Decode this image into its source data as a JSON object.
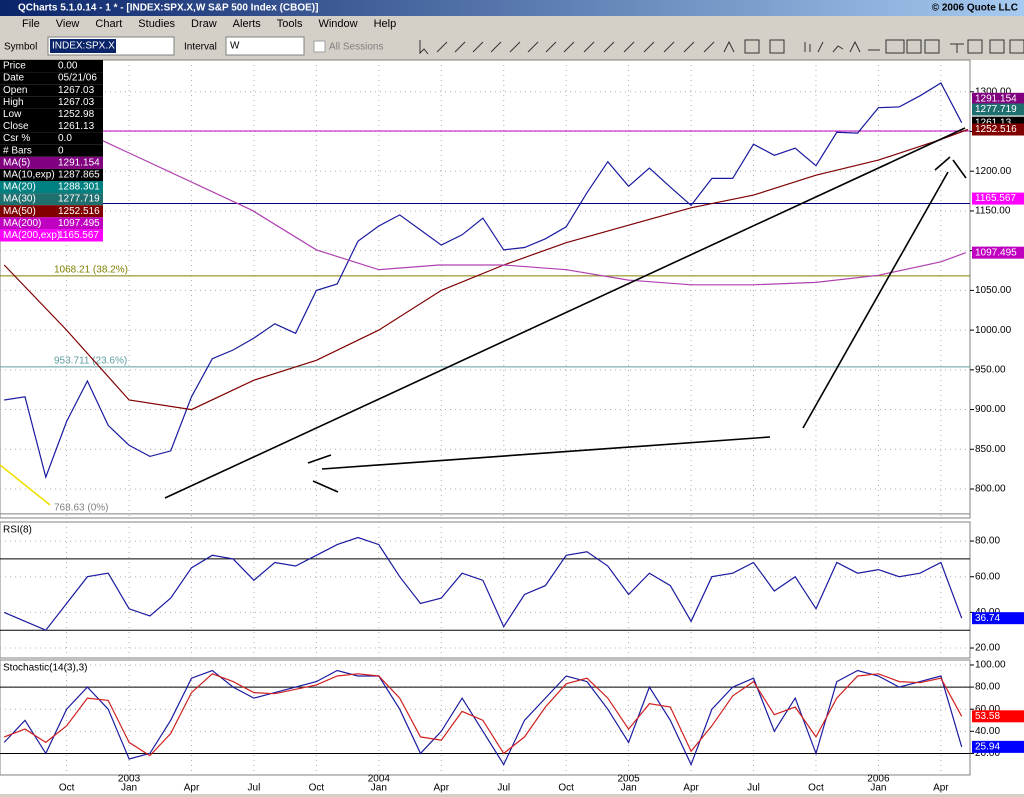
{
  "window": {
    "title": "QCharts 5.1.0.14 - 1 * - [INDEX:SPX.X,W S&P 500 Index (CBOE)]",
    "copyright": "© 2006 Quote LLC"
  },
  "menu": [
    "File",
    "View",
    "Chart",
    "Studies",
    "Draw",
    "Alerts",
    "Tools",
    "Window",
    "Help"
  ],
  "toolbar": {
    "symbol_label": "Symbol",
    "symbol": "INDEX:SPX.X",
    "interval_label": "Interval",
    "interval": "W",
    "sessions": "All Sessions"
  },
  "data_box": [
    {
      "label": "Price",
      "value": "0.00",
      "color": "#000000"
    },
    {
      "label": "Date",
      "value": "05/21/06",
      "color": "#000000"
    },
    {
      "label": "Open",
      "value": "1267.03",
      "color": "#000000"
    },
    {
      "label": "High",
      "value": "1267.03",
      "color": "#000000"
    },
    {
      "label": "Low",
      "value": "1252.98",
      "color": "#000000"
    },
    {
      "label": "Close",
      "value": "1261.13",
      "color": "#000000"
    },
    {
      "label": "Csr %",
      "value": "0.0",
      "color": "#000000"
    },
    {
      "label": "# Bars",
      "value": "0",
      "color": "#000000"
    },
    {
      "label": "MA(5)",
      "value": "1291.154",
      "color": "#800080"
    },
    {
      "label": "MA(10,exp)",
      "value": "1287.865",
      "color": "#000000"
    },
    {
      "label": "MA(20)",
      "value": "1288.301",
      "color": "#008080"
    },
    {
      "label": "MA(30)",
      "value": "1277.719",
      "color": "#1f6f6f"
    },
    {
      "label": "MA(50)",
      "value": "1252.516",
      "color": "#800000"
    },
    {
      "label": "MA(200)",
      "value": "1097.495",
      "color": "#c000c0"
    },
    {
      "label": "MA(200,exp)",
      "value": "1165.567",
      "color": "#ff00ff"
    }
  ],
  "chart_data": [
    {
      "type": "line",
      "xlim": [
        -3.2,
        43.4
      ],
      "ylim": [
        763.5,
        1340
      ],
      "yticks": [
        {
          "value": 800,
          "label": "800.00"
        },
        {
          "value": 850,
          "label": "850.00"
        },
        {
          "value": 900,
          "label": "900.00"
        },
        {
          "value": 950,
          "label": "950.00"
        },
        {
          "value": 1000,
          "label": "1000.00"
        },
        {
          "value": 1050,
          "label": "1050.00"
        },
        {
          "value": 1100,
          "label": "1100.00"
        },
        {
          "value": 1150,
          "label": "1150.00"
        },
        {
          "value": 1200,
          "label": "1200.00"
        },
        {
          "value": 1250,
          "label": "1250.00"
        },
        {
          "value": 1300,
          "label": "1300.00"
        }
      ],
      "levels": [
        {
          "value": 768.63,
          "label": "768.63 (0%)",
          "color": "#808080"
        },
        {
          "value": 953.711,
          "label": "953.711 (23.6%)",
          "color": "#5f9ea0"
        },
        {
          "value": 1068.21,
          "label": "1068.21 (38.2%)",
          "color": "#808000"
        },
        {
          "value": 1159.4,
          "color": "#000080"
        },
        {
          "value": 1250.7,
          "color": "#c000c0"
        }
      ],
      "series": [
        {
          "name": "Close",
          "color": "#1a1aa0",
          "x": [
            -3,
            -2,
            -1,
            0,
            1,
            2,
            3,
            4,
            5,
            6,
            7,
            8,
            9,
            10,
            11,
            12,
            13,
            14,
            15,
            16,
            17,
            18,
            19,
            20,
            21,
            22,
            23,
            24,
            25,
            26,
            27,
            28,
            29,
            30,
            31,
            32,
            33,
            34,
            35,
            36,
            37,
            38,
            39,
            40,
            41,
            42,
            43
          ],
          "values": [
            912,
            916,
            815,
            885,
            936,
            880,
            855,
            841,
            848,
            916,
            964,
            975,
            990,
            1008,
            996,
            1050,
            1058,
            1112,
            1131,
            1145,
            1126,
            1107,
            1120,
            1141,
            1101,
            1104,
            1115,
            1130,
            1173,
            1212,
            1181,
            1204,
            1180,
            1157,
            1191,
            1191,
            1234,
            1220,
            1229,
            1207,
            1249,
            1248,
            1280,
            1281,
            1295,
            1311,
            1261.13
          ]
        },
        {
          "name": "MA(50)",
          "color": "#800000",
          "x": [
            -3,
            0,
            3,
            6,
            9,
            12,
            15,
            18,
            21,
            24,
            27,
            30,
            33,
            36,
            39,
            42,
            43.3
          ],
          "values": [
            1082,
            1000,
            912,
            900,
            937,
            962,
            1000,
            1050,
            1082,
            1110,
            1132,
            1154,
            1170,
            1195,
            1214,
            1240,
            1252.516
          ]
        },
        {
          "name": "MA(200)",
          "color": "#b040b0",
          "x": [
            1.6,
            8.9,
            12,
            15,
            17.9,
            21,
            24,
            27,
            30,
            33,
            36,
            39,
            42,
            43.2
          ],
          "values": [
            1240,
            1151,
            1101,
            1076,
            1082,
            1082,
            1076,
            1063,
            1057,
            1057,
            1060,
            1069,
            1086,
            1097.495
          ]
        }
      ],
      "markers": [
        {
          "value": 1291.154,
          "color": "#800080"
        },
        {
          "value": 1277.719,
          "color": "#1f6f6f"
        },
        {
          "value": 1261.13,
          "color": "#000000"
        },
        {
          "value": 1252.516,
          "color": "#800000"
        },
        {
          "value": 1165.567,
          "color": "#ff00ff"
        },
        {
          "value": 1097.495,
          "color": "#c000c0"
        }
      ]
    },
    {
      "type": "line",
      "title": "RSI(8)",
      "xlim": [
        -3.2,
        43.4
      ],
      "ylim": [
        14.4,
        90.7
      ],
      "yticks": [
        {
          "value": 20,
          "label": "20.00"
        },
        {
          "value": 40,
          "label": "40.00"
        },
        {
          "value": 60,
          "label": "60.00"
        },
        {
          "value": 80,
          "label": "80.00"
        }
      ],
      "levels": [
        {
          "value": 70,
          "color": "#000000"
        },
        {
          "value": 30,
          "color": "#000000"
        }
      ],
      "series": [
        {
          "name": "RSI",
          "color": "#1a1aa0",
          "x": [
            -3,
            -2,
            -1,
            0,
            1,
            2,
            3,
            4,
            5,
            6,
            7,
            8,
            9,
            10,
            11,
            12,
            13,
            14,
            15,
            16,
            17,
            18,
            19,
            20,
            21,
            22,
            23,
            24,
            25,
            26,
            27,
            28,
            29,
            30,
            31,
            32,
            33,
            34,
            35,
            36,
            37,
            38,
            39,
            40,
            41,
            42,
            43
          ],
          "values": [
            40,
            35,
            30,
            45,
            60,
            62,
            42,
            38,
            48,
            65,
            72,
            70,
            58,
            68,
            66,
            72,
            78,
            82,
            78,
            60,
            45,
            48,
            62,
            58,
            32,
            50,
            55,
            72,
            74,
            66,
            50,
            62,
            55,
            35,
            60,
            62,
            68,
            52,
            60,
            42,
            68,
            62,
            64,
            60,
            62,
            68,
            36.74
          ]
        }
      ],
      "markers": [
        {
          "value": 36.74,
          "color": "#0000ff"
        }
      ]
    },
    {
      "type": "line",
      "title": "Stochastic(14(3),3)",
      "xlim": [
        -3.2,
        43.4
      ],
      "ylim": [
        0.5,
        104.5
      ],
      "yticks": [
        {
          "value": 20,
          "label": "20.00"
        },
        {
          "value": 40,
          "label": "40.00"
        },
        {
          "value": 60,
          "label": "60.00"
        },
        {
          "value": 80,
          "label": "80.00"
        },
        {
          "value": 100,
          "label": "100.00"
        }
      ],
      "xticks": [
        {
          "value": 0,
          "label": "Oct"
        },
        {
          "value": 3,
          "label": "Jan"
        },
        {
          "value": 6,
          "label": "Apr"
        },
        {
          "value": 9,
          "label": "Jul"
        },
        {
          "value": 12,
          "label": "Oct"
        },
        {
          "value": 15,
          "label": "Jan"
        },
        {
          "value": 18,
          "label": "Apr"
        },
        {
          "value": 21,
          "label": "Jul"
        },
        {
          "value": 24,
          "label": "Oct"
        },
        {
          "value": 27,
          "label": "Jan"
        },
        {
          "value": 30,
          "label": "Apr"
        },
        {
          "value": 33,
          "label": "Jul"
        },
        {
          "value": 36,
          "label": "Oct"
        },
        {
          "value": 39,
          "label": "Jan"
        },
        {
          "value": 42,
          "label": "Apr"
        }
      ],
      "year_labels": [
        {
          "value": 3,
          "label": "2003"
        },
        {
          "value": 15,
          "label": "2004"
        },
        {
          "value": 27,
          "label": "2005"
        },
        {
          "value": 39,
          "label": "2006"
        }
      ],
      "levels": [
        {
          "value": 80,
          "color": "#000000"
        },
        {
          "value": 20,
          "color": "#000000"
        }
      ],
      "series": [
        {
          "name": "%K",
          "color": "#1a1aa0",
          "x": [
            -3,
            -2,
            -1,
            0,
            1,
            2,
            3,
            4,
            5,
            6,
            7,
            8,
            9,
            10,
            11,
            12,
            13,
            14,
            15,
            16,
            17,
            18,
            19,
            20,
            21,
            22,
            23,
            24,
            25,
            26,
            27,
            28,
            29,
            30,
            31,
            32,
            33,
            34,
            35,
            36,
            37,
            38,
            39,
            40,
            41,
            42,
            43
          ],
          "values": [
            30,
            50,
            20,
            60,
            80,
            60,
            15,
            20,
            50,
            88,
            95,
            80,
            70,
            75,
            80,
            85,
            95,
            90,
            90,
            60,
            20,
            40,
            70,
            40,
            10,
            50,
            70,
            90,
            85,
            60,
            30,
            80,
            50,
            10,
            60,
            80,
            88,
            40,
            70,
            20,
            85,
            95,
            90,
            80,
            85,
            90,
            25.94
          ]
        },
        {
          "name": "%D",
          "color": "#d02020",
          "x": [
            -3,
            -2,
            -1,
            0,
            1,
            2,
            3,
            4,
            5,
            6,
            7,
            8,
            9,
            10,
            11,
            12,
            13,
            14,
            15,
            16,
            17,
            18,
            19,
            20,
            21,
            22,
            23,
            24,
            25,
            26,
            27,
            28,
            29,
            30,
            31,
            32,
            33,
            34,
            35,
            36,
            37,
            38,
            39,
            40,
            41,
            42,
            43
          ],
          "values": [
            35,
            42,
            30,
            45,
            70,
            68,
            30,
            18,
            38,
            75,
            92,
            85,
            75,
            74,
            78,
            82,
            90,
            92,
            90,
            70,
            35,
            32,
            58,
            50,
            20,
            35,
            62,
            83,
            88,
            70,
            42,
            65,
            62,
            22,
            45,
            72,
            85,
            55,
            62,
            35,
            70,
            90,
            92,
            85,
            84,
            88,
            53.58
          ]
        }
      ],
      "markers": [
        {
          "value": 53.58,
          "color": "#ff0000"
        },
        {
          "value": 25.94,
          "color": "#0000ff"
        }
      ]
    }
  ]
}
